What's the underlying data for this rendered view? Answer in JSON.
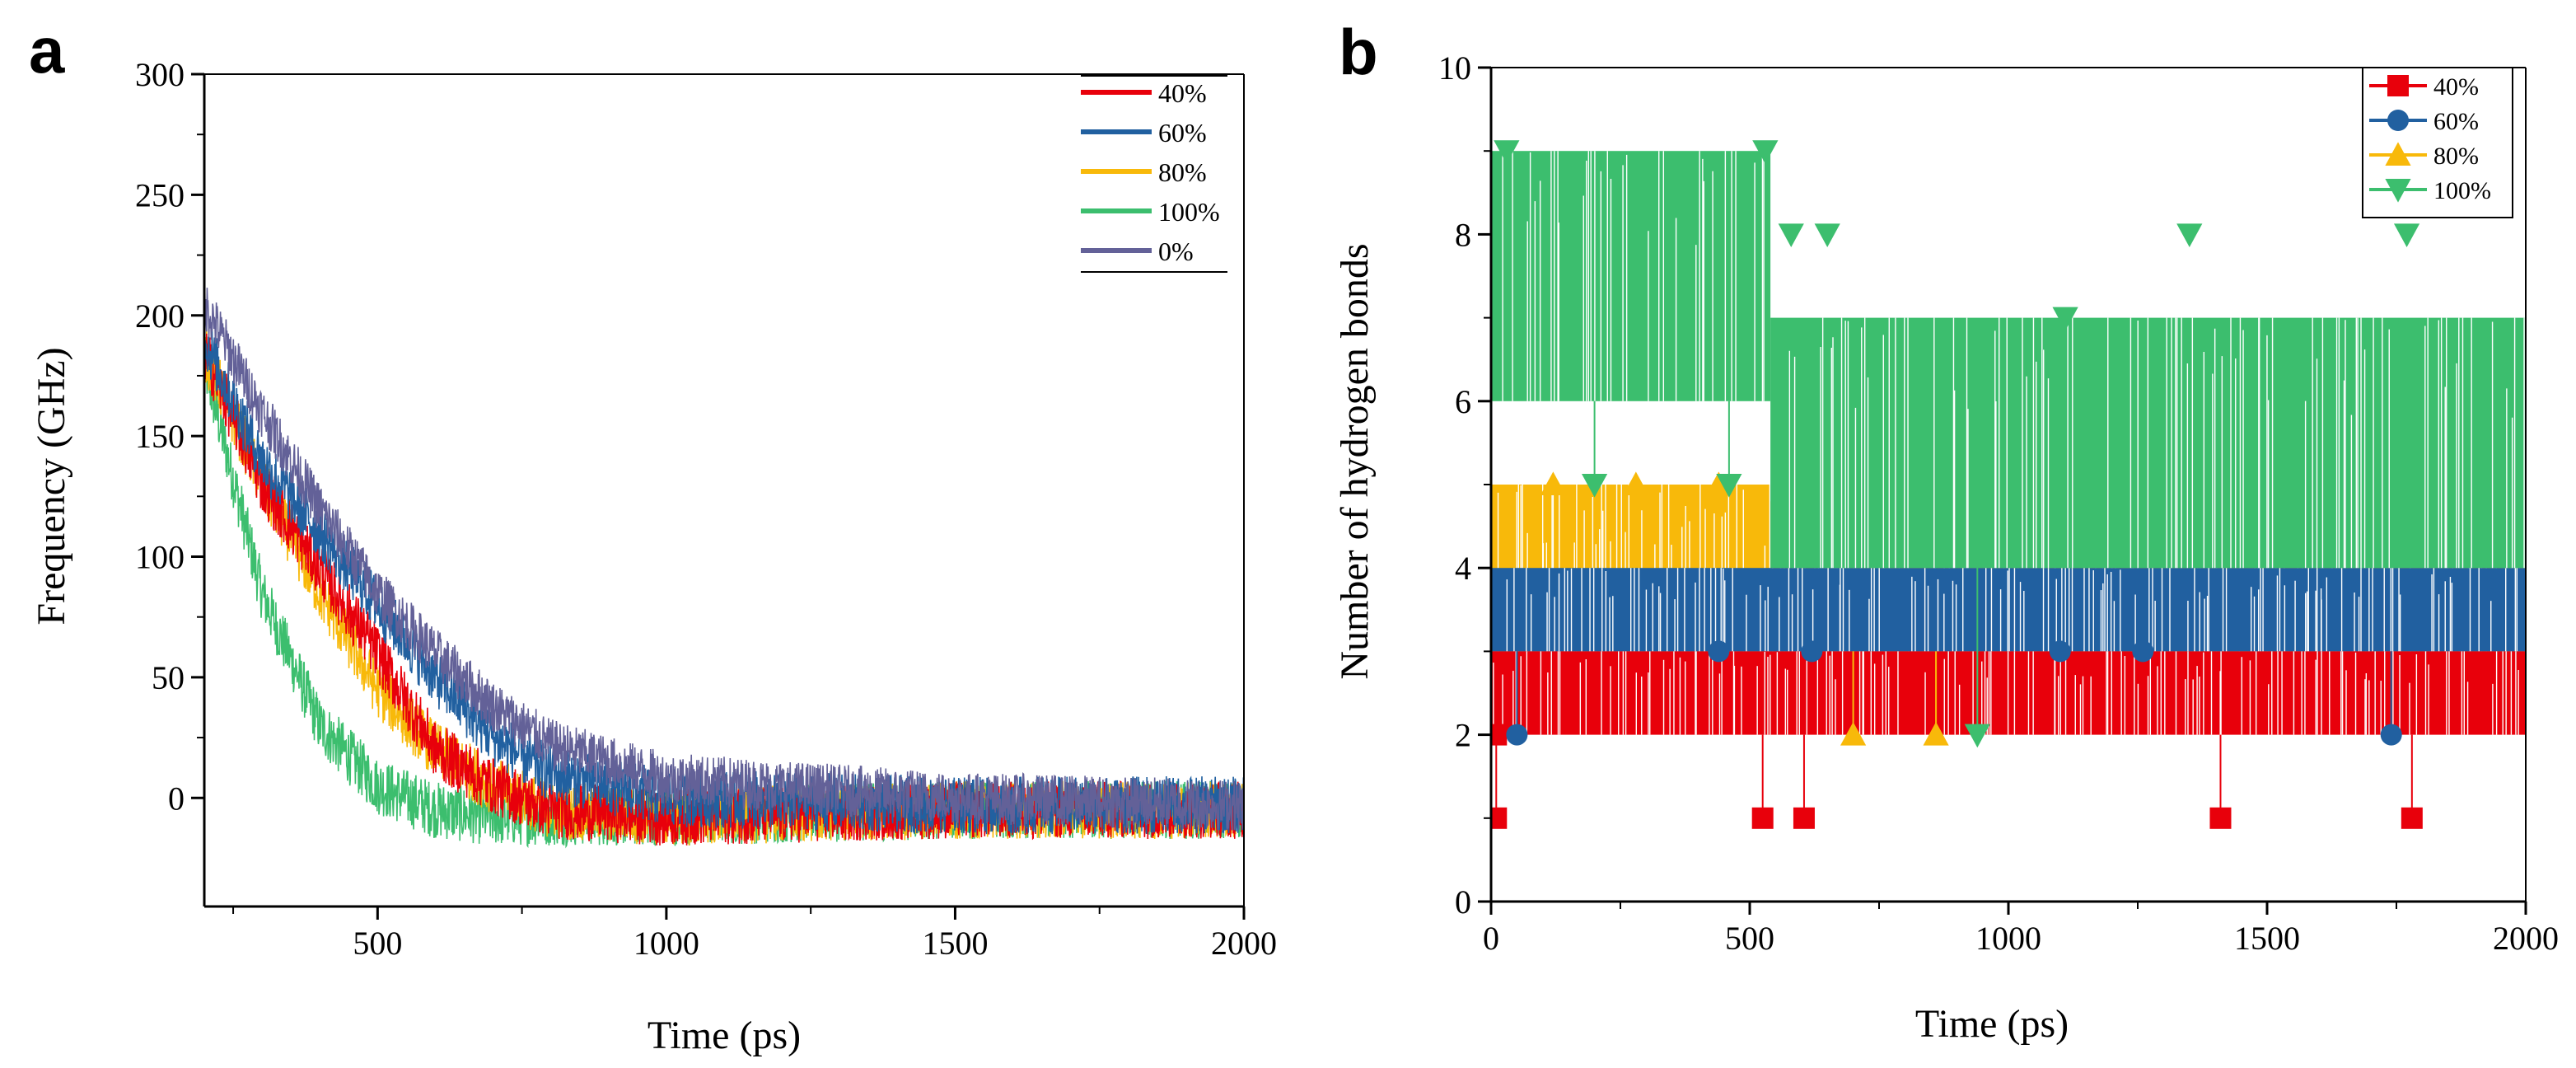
{
  "figure": {
    "panel_a_letter": "a",
    "panel_b_letter": "b"
  },
  "chart_data": [
    {
      "id": "a",
      "type": "line",
      "title": "",
      "xlabel": "Time (ps)",
      "ylabel": "Frequency (GHz)",
      "xlim": [
        200,
        2000
      ],
      "ylim": [
        -45,
        300
      ],
      "xticks": [
        500,
        1000,
        1500,
        2000
      ],
      "yticks": [
        0,
        50,
        100,
        150,
        200,
        250,
        300
      ],
      "grid": false,
      "legend_position": "top-right",
      "noise_amplitude": 12,
      "series": [
        {
          "name": "40%",
          "color": "#e8000b",
          "x": [
            200,
            300,
            400,
            500,
            600,
            700,
            800,
            1000,
            1500,
            2000
          ],
          "values": [
            185,
            130,
            95,
            60,
            20,
            5,
            -5,
            -8,
            -5,
            -5
          ]
        },
        {
          "name": "60%",
          "color": "#2160a0",
          "x": [
            200,
            300,
            400,
            500,
            600,
            700,
            800,
            1000,
            1500,
            2000
          ],
          "values": [
            190,
            140,
            110,
            80,
            50,
            25,
            10,
            0,
            -3,
            -3
          ]
        },
        {
          "name": "80%",
          "color": "#f8b90a",
          "x": [
            200,
            300,
            400,
            500,
            600,
            700,
            800,
            1000,
            1500,
            2000
          ],
          "values": [
            185,
            130,
            85,
            45,
            20,
            5,
            -5,
            -8,
            -5,
            -5
          ]
        },
        {
          "name": "100%",
          "color": "#3cbe6e",
          "x": [
            200,
            300,
            400,
            500,
            600,
            700,
            800,
            1000,
            1500,
            2000
          ],
          "values": [
            180,
            85,
            30,
            5,
            -5,
            -8,
            -8,
            -8,
            -5,
            -5
          ]
        },
        {
          "name": "0%",
          "color": "#636198",
          "x": [
            200,
            300,
            400,
            500,
            600,
            700,
            800,
            1000,
            1500,
            2000
          ],
          "values": [
            205,
            160,
            120,
            85,
            60,
            38,
            22,
            8,
            0,
            -3
          ]
        }
      ]
    },
    {
      "id": "b",
      "type": "line",
      "title": "",
      "xlabel": "Time (ps)",
      "ylabel": "Number of hydrogen bonds",
      "xlim": [
        0,
        2000
      ],
      "ylim": [
        0,
        10
      ],
      "xticks": [
        0,
        500,
        1000,
        1500,
        2000
      ],
      "yticks": [
        0,
        2,
        4,
        6,
        8,
        10
      ],
      "grid": false,
      "legend_position": "top-right",
      "series": [
        {
          "name": "40%",
          "color": "#e8000b",
          "marker": "square",
          "band_levels": [
            2,
            3
          ],
          "band_x": [
            [
              0,
              2000
            ]
          ],
          "markers": [
            [
              10,
              1
            ],
            [
              525,
              1
            ],
            [
              605,
              1
            ],
            [
              1410,
              1
            ],
            [
              1780,
              1
            ],
            [
              10,
              2
            ]
          ]
        },
        {
          "name": "60%",
          "color": "#2160a0",
          "marker": "circle",
          "band_levels": [
            3,
            4
          ],
          "band_x": [
            [
              0,
              2000
            ]
          ],
          "markers": [
            [
              50,
              2
            ],
            [
              1740,
              2
            ],
            [
              440,
              3
            ],
            [
              620,
              3
            ],
            [
              1100,
              3
            ],
            [
              1260,
              3
            ]
          ]
        },
        {
          "name": "80%",
          "color": "#f8b90a",
          "marker": "triangle-up",
          "band_levels": [
            3,
            5
          ],
          "band_x": [
            [
              0,
              540
            ]
          ],
          "band_levels_2": [
            3,
            4.8
          ],
          "band_x_2": [
            [
              540,
              2000
            ]
          ],
          "markers": [
            [
              700,
              2
            ],
            [
              860,
              2
            ],
            [
              120,
              5
            ],
            [
              280,
              5
            ],
            [
              440,
              5
            ]
          ]
        },
        {
          "name": "100%",
          "color": "#3cbe6e",
          "marker": "triangle-down",
          "band_levels": [
            6,
            9
          ],
          "band_x": [
            [
              0,
              540
            ]
          ],
          "band_levels_2": [
            4,
            7
          ],
          "band_x_2": [
            [
              540,
              2000
            ]
          ],
          "markers": [
            [
              30,
              9
            ],
            [
              530,
              9
            ],
            [
              580,
              8
            ],
            [
              650,
              8
            ],
            [
              1350,
              8
            ],
            [
              1770,
              8
            ],
            [
              1110,
              7
            ],
            [
              940,
              2
            ],
            [
              200,
              5
            ],
            [
              460,
              5
            ]
          ]
        }
      ]
    }
  ]
}
